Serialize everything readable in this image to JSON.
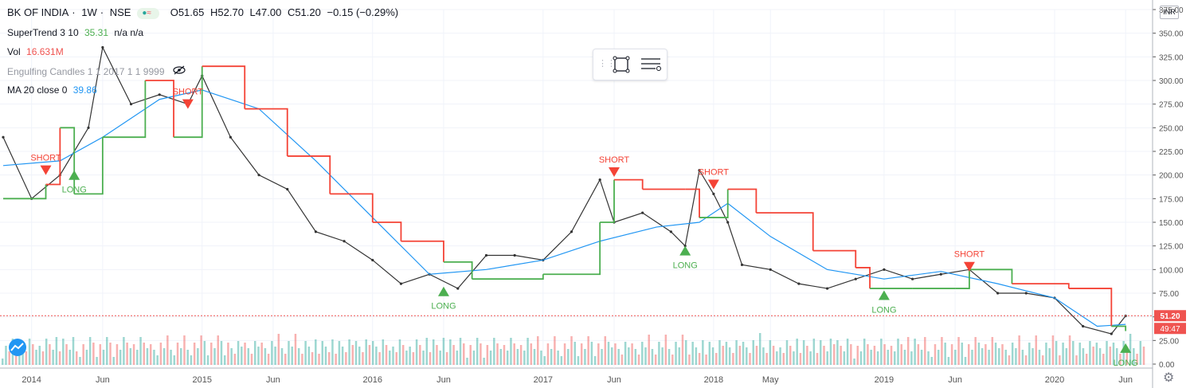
{
  "header": {
    "symbol": "BK OF INDIA",
    "interval": "1W",
    "exchange": "NSE",
    "sep": "·",
    "ohlc": {
      "o": "O51.65",
      "h": "H52.70",
      "l": "L47.00",
      "c": "C51.20",
      "chg": "−0.15 (−0.29%)"
    }
  },
  "indicators": {
    "supertrend": {
      "label": "SuperTrend 3 10",
      "value": "35.31",
      "extra": "n/a  n/a"
    },
    "vol": {
      "label": "Vol",
      "value": "16.631M"
    },
    "engulfing": {
      "label": "Engulfing Candles 1 1 2017 1 1 9999"
    },
    "ma": {
      "label": "MA 20 close 0",
      "value": "39.86"
    }
  },
  "currency": "INR",
  "colors": {
    "up": "#26a69a",
    "down": "#ef5350",
    "st_up": "#4caf50",
    "st_down": "#f44336",
    "ma": "#2196f3",
    "grid": "#f0f3fa",
    "text": "#131722",
    "axis": "#555555"
  },
  "chart_data": {
    "type": "line",
    "title": "BK OF INDIA · 1W · NSE",
    "ylim": [
      0,
      375
    ],
    "y_ticks": [
      0,
      25,
      50,
      75,
      100,
      125,
      150,
      175,
      200,
      225,
      250,
      275,
      300,
      325,
      350,
      375
    ],
    "y_tick_labels": [
      "0.00",
      "25.00",
      "50.00",
      "75.00",
      "100.00",
      "125.00",
      "150.00",
      "175.00",
      "200.00",
      "225.00",
      "250.00",
      "275.00",
      "300.00",
      "325.00",
      "350.00",
      "375.00"
    ],
    "x_ticks": [
      "2014-01",
      "2014-06",
      "2015-01",
      "2015-06",
      "2016-01",
      "2016-06",
      "2017-01",
      "2017-06",
      "2018-01",
      "2018-05",
      "2019-01",
      "2019-06",
      "2020-01",
      "2020-06"
    ],
    "x_tick_labels": [
      "2014",
      "Jun",
      "2015",
      "Jun",
      "2016",
      "Jun",
      "2017",
      "Jun",
      "2018",
      "May",
      "2019",
      "Jun",
      "2020",
      "Jun"
    ],
    "x_range": [
      "2013-11",
      "2020-07"
    ],
    "close_price": {
      "value": 51.2,
      "label": "51.20"
    },
    "ma_price": {
      "value": 39.86,
      "label": "49:47"
    },
    "series": [
      {
        "name": "BK OF INDIA",
        "kind": "price",
        "x": [
          "2013-11",
          "2014-01",
          "2014-03",
          "2014-05",
          "2014-06",
          "2014-08",
          "2014-10",
          "2014-12",
          "2015-01",
          "2015-03",
          "2015-05",
          "2015-07",
          "2015-09",
          "2015-11",
          "2016-01",
          "2016-03",
          "2016-05",
          "2016-07",
          "2016-09",
          "2016-11",
          "2017-01",
          "2017-03",
          "2017-05",
          "2017-06",
          "2017-08",
          "2017-10",
          "2017-11",
          "2017-12",
          "2018-01",
          "2018-02",
          "2018-03",
          "2018-05",
          "2018-07",
          "2018-09",
          "2018-11",
          "2019-01",
          "2019-03",
          "2019-05",
          "2019-07",
          "2019-09",
          "2019-11",
          "2020-01",
          "2020-03",
          "2020-05",
          "2020-06"
        ],
        "values": [
          240,
          175,
          200,
          250,
          335,
          275,
          285,
          275,
          305,
          240,
          200,
          185,
          140,
          130,
          110,
          85,
          95,
          80,
          115,
          115,
          110,
          140,
          195,
          150,
          160,
          140,
          125,
          205,
          180,
          150,
          105,
          100,
          85,
          80,
          90,
          100,
          90,
          95,
          100,
          75,
          75,
          70,
          40,
          32,
          51
        ]
      },
      {
        "name": "MA 20 close 0",
        "kind": "ma",
        "x": [
          "2013-11",
          "2014-03",
          "2014-06",
          "2014-10",
          "2015-01",
          "2015-05",
          "2015-09",
          "2016-01",
          "2016-05",
          "2016-09",
          "2017-01",
          "2017-05",
          "2017-09",
          "2017-12",
          "2018-02",
          "2018-05",
          "2018-09",
          "2019-01",
          "2019-05",
          "2019-09",
          "2020-01",
          "2020-04",
          "2020-06"
        ],
        "values": [
          210,
          215,
          240,
          280,
          290,
          270,
          215,
          155,
          95,
          100,
          110,
          130,
          145,
          150,
          170,
          135,
          100,
          90,
          98,
          85,
          70,
          40,
          42
        ]
      },
      {
        "name": "SuperTrend 3 10",
        "kind": "supertrend",
        "x": [
          "2013-11",
          "2014-02",
          "2014-03",
          "2014-04",
          "2014-06",
          "2014-09",
          "2014-11",
          "2015-01",
          "2015-04",
          "2015-07",
          "2015-10",
          "2016-01",
          "2016-03",
          "2016-06",
          "2016-08",
          "2017-01",
          "2017-05",
          "2017-06",
          "2017-08",
          "2017-11",
          "2017-12",
          "2018-02",
          "2018-04",
          "2018-08",
          "2018-11",
          "2018-12",
          "2019-03",
          "2019-06",
          "2019-07",
          "2019-10",
          "2020-02",
          "2020-05",
          "2020-06"
        ],
        "values": [
          175,
          190,
          250,
          180,
          240,
          300,
          240,
          315,
          270,
          220,
          180,
          150,
          130,
          108,
          90,
          95,
          150,
          195,
          185,
          185,
          155,
          185,
          160,
          120,
          102,
          80,
          80,
          80,
          100,
          85,
          80,
          40,
          35
        ]
      }
    ],
    "annotations": [
      {
        "text": "SHORT",
        "x": "2014-02",
        "y": 200
      },
      {
        "text": "LONG",
        "x": "2014-04",
        "y": 205
      },
      {
        "text": "SHORT",
        "x": "2014-12",
        "y": 270
      },
      {
        "text": "LONG",
        "x": "2016-06",
        "y": 82
      },
      {
        "text": "SHORT",
        "x": "2017-06",
        "y": 198
      },
      {
        "text": "LONG",
        "x": "2017-11",
        "y": 125
      },
      {
        "text": "SHORT",
        "x": "2018-01",
        "y": 185
      },
      {
        "text": "LONG",
        "x": "2019-01",
        "y": 78
      },
      {
        "text": "SHORT",
        "x": "2019-07",
        "y": 98
      },
      {
        "text": "LONG",
        "x": "2020-06",
        "y": 22
      }
    ]
  }
}
